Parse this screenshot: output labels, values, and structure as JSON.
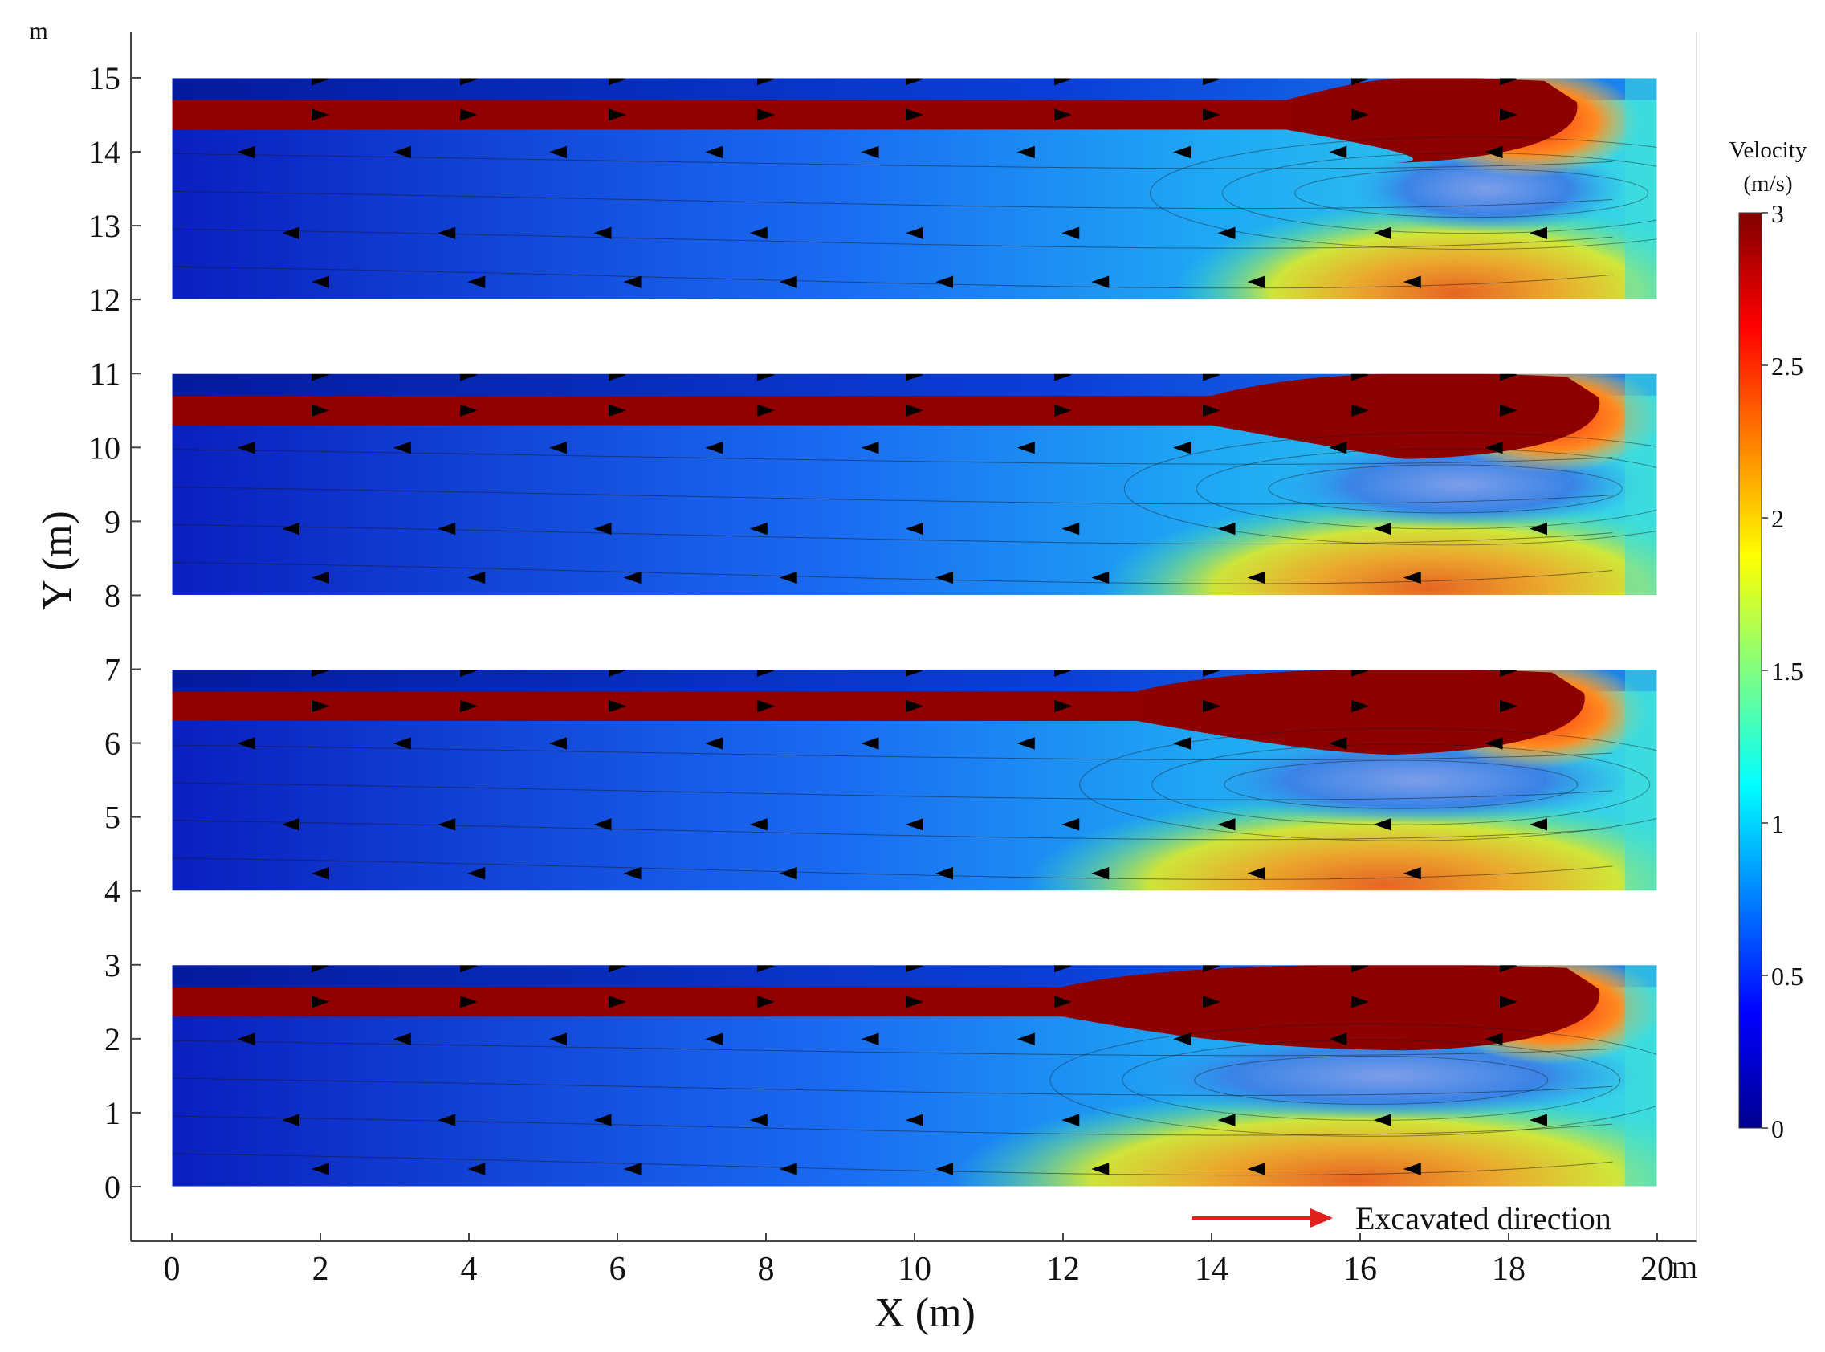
{
  "chart_data": {
    "type": "heatmap",
    "title": "",
    "xlabel": "X (m)",
    "ylabel": "Y (m)",
    "x_unit_label": "m",
    "y_unit_label": "m",
    "xlim": [
      0,
      20
    ],
    "ylim": [
      -0.8,
      15.7
    ],
    "x_ticks": [
      0,
      2,
      4,
      6,
      8,
      10,
      12,
      14,
      16,
      18,
      20
    ],
    "x_tick_labels": [
      "0",
      "2",
      "4",
      "6",
      "8",
      "10",
      "12",
      "14",
      "16",
      "18",
      "20"
    ],
    "y_ticks": [
      0,
      1,
      2,
      3,
      4,
      5,
      6,
      7,
      8,
      9,
      10,
      11,
      12,
      13,
      14,
      15
    ],
    "y_tick_labels": [
      "0",
      "1",
      "2",
      "3",
      "4",
      "5",
      "6",
      "7",
      "8",
      "9",
      "10",
      "11",
      "12",
      "13",
      "14",
      "15"
    ],
    "grid": false,
    "colorbar": {
      "title_line1": "Velocity",
      "title_line2": "(m/s)",
      "min": 0,
      "max": 3,
      "ticks": [
        0,
        0.5,
        1,
        1.5,
        2,
        2.5,
        3
      ],
      "tick_labels": [
        "0",
        "0.5",
        "1",
        "1.5",
        "2",
        "2.5",
        "3"
      ],
      "colormap": "jet"
    },
    "panels": [
      {
        "y_min": 12,
        "y_max": 15,
        "jet_y_top": 14.7,
        "jet_y_bottom": 14.3,
        "jet_spread_start_x": 15.0,
        "spread_end_x": 18.7
      },
      {
        "y_min": 8,
        "y_max": 11,
        "jet_y_top": 10.7,
        "jet_y_bottom": 10.3,
        "jet_spread_start_x": 14.0,
        "spread_end_x": 19.0
      },
      {
        "y_min": 4,
        "y_max": 7,
        "jet_y_top": 6.7,
        "jet_y_bottom": 6.3,
        "jet_spread_start_x": 13.0,
        "spread_end_x": 18.8
      },
      {
        "y_min": 0,
        "y_max": 3,
        "jet_y_top": 2.7,
        "jet_y_bottom": 2.3,
        "jet_spread_start_x": 12.0,
        "spread_end_x": 19.0
      }
    ],
    "annotation": {
      "text": "Excavated direction",
      "arrow_color": "#e0201c"
    }
  }
}
